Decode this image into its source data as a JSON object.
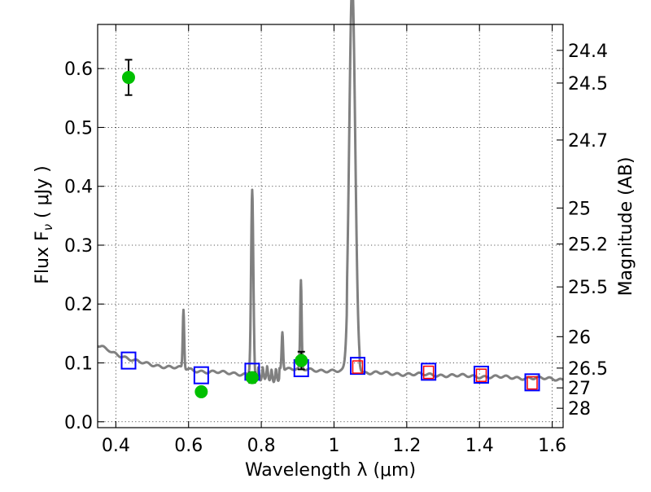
{
  "chart_data": {
    "type": "scatter",
    "xlabel": "Wavelength  λ (μm)",
    "ylabel": "Flux  F",
    "ylabel_subscript": "ν",
    "ylabel_unit": "  ( μJy )",
    "y2label": "Magnitude (AB)",
    "xlim": [
      0.35,
      1.63
    ],
    "ylim": [
      -0.01,
      0.675
    ],
    "grid": true,
    "x_ticks": [
      {
        "value": 0.4,
        "label": "0.4"
      },
      {
        "value": 0.6,
        "label": "0.6"
      },
      {
        "value": 0.8,
        "label": "0.8"
      },
      {
        "value": 1.0,
        "label": "1"
      },
      {
        "value": 1.2,
        "label": "1.2"
      },
      {
        "value": 1.4,
        "label": "1.4"
      },
      {
        "value": 1.6,
        "label": "1.6"
      }
    ],
    "y_ticks": [
      {
        "value": 0.0,
        "label": "0.0"
      },
      {
        "value": 0.1,
        "label": "0.1"
      },
      {
        "value": 0.2,
        "label": "0.2"
      },
      {
        "value": 0.3,
        "label": "0.3"
      },
      {
        "value": 0.4,
        "label": "0.4"
      },
      {
        "value": 0.5,
        "label": "0.5"
      },
      {
        "value": 0.6,
        "label": "0.6"
      }
    ],
    "y2_ticks": [
      {
        "value": 24.4,
        "label": "24.4"
      },
      {
        "value": 24.5,
        "label": "24.5"
      },
      {
        "value": 24.7,
        "label": "24.7"
      },
      {
        "value": 25.0,
        "label": "25"
      },
      {
        "value": 25.2,
        "label": "25.2"
      },
      {
        "value": 25.5,
        "label": "25.5"
      },
      {
        "value": 26.0,
        "label": "26"
      },
      {
        "value": 26.5,
        "label": "26.5"
      },
      {
        "value": 27.0,
        "label": "27"
      },
      {
        "value": 28.0,
        "label": "28"
      }
    ],
    "spectrum": {
      "color": "#808080",
      "continuum": [
        [
          0.35,
          0.129
        ],
        [
          0.36,
          0.127
        ],
        [
          0.37,
          0.124
        ],
        [
          0.38,
          0.122
        ],
        [
          0.39,
          0.118
        ],
        [
          0.4,
          0.116
        ],
        [
          0.42,
          0.111
        ],
        [
          0.44,
          0.106
        ],
        [
          0.46,
          0.102
        ],
        [
          0.48,
          0.099
        ],
        [
          0.5,
          0.097
        ],
        [
          0.52,
          0.095
        ],
        [
          0.55,
          0.093
        ],
        [
          0.58,
          0.091
        ],
        [
          0.6,
          0.089
        ],
        [
          0.62,
          0.087
        ],
        [
          0.65,
          0.085
        ],
        [
          0.68,
          0.084
        ],
        [
          0.7,
          0.083
        ],
        [
          0.73,
          0.082
        ],
        [
          0.76,
          0.081
        ],
        [
          0.8,
          0.094
        ],
        [
          0.85,
          0.091
        ],
        [
          0.9,
          0.089
        ],
        [
          0.95,
          0.088
        ],
        [
          1.0,
          0.086
        ],
        [
          1.05,
          0.085
        ],
        [
          1.1,
          0.083
        ],
        [
          1.15,
          0.082
        ],
        [
          1.2,
          0.081
        ],
        [
          1.25,
          0.08
        ],
        [
          1.3,
          0.079
        ],
        [
          1.35,
          0.078
        ],
        [
          1.4,
          0.077
        ],
        [
          1.45,
          0.076
        ],
        [
          1.5,
          0.075
        ],
        [
          1.55,
          0.074
        ],
        [
          1.6,
          0.073
        ],
        [
          1.63,
          0.072
        ]
      ],
      "lines": [
        {
          "x": 0.586,
          "peak": 0.19,
          "width": 0.002
        },
        {
          "x": 0.775,
          "peak": 0.395,
          "width": 0.003
        },
        {
          "x": 0.858,
          "peak": 0.155,
          "width": 0.002
        },
        {
          "x": 0.909,
          "peak": 0.238,
          "width": 0.002
        },
        {
          "x": 1.05,
          "peak": 0.644,
          "width": 0.008
        }
      ],
      "absorption_band": {
        "x_start": 0.78,
        "x_end": 0.85,
        "depth": 0.025
      }
    },
    "observed": {
      "color": "#00c000",
      "points": [
        {
          "x": 0.435,
          "y": 0.585,
          "err": 0.03
        },
        {
          "x": 0.635,
          "y": 0.051,
          "err": 0.006
        },
        {
          "x": 0.775,
          "y": 0.075,
          "err": 0.009
        },
        {
          "x": 0.91,
          "y": 0.104,
          "err": 0.015
        }
      ]
    },
    "model_blue": {
      "color": "#0000ff",
      "points": [
        {
          "x": 0.435,
          "y": 0.104
        },
        {
          "x": 0.635,
          "y": 0.079
        },
        {
          "x": 0.775,
          "y": 0.085
        },
        {
          "x": 0.91,
          "y": 0.091
        },
        {
          "x": 1.065,
          "y": 0.095
        },
        {
          "x": 1.26,
          "y": 0.085
        },
        {
          "x": 1.405,
          "y": 0.08
        },
        {
          "x": 1.545,
          "y": 0.067
        }
      ]
    },
    "model_red": {
      "color": "#ff0000",
      "points": [
        {
          "x": 1.065,
          "y": 0.093
        },
        {
          "x": 1.26,
          "y": 0.084
        },
        {
          "x": 1.405,
          "y": 0.079
        },
        {
          "x": 1.545,
          "y": 0.066
        }
      ]
    }
  }
}
